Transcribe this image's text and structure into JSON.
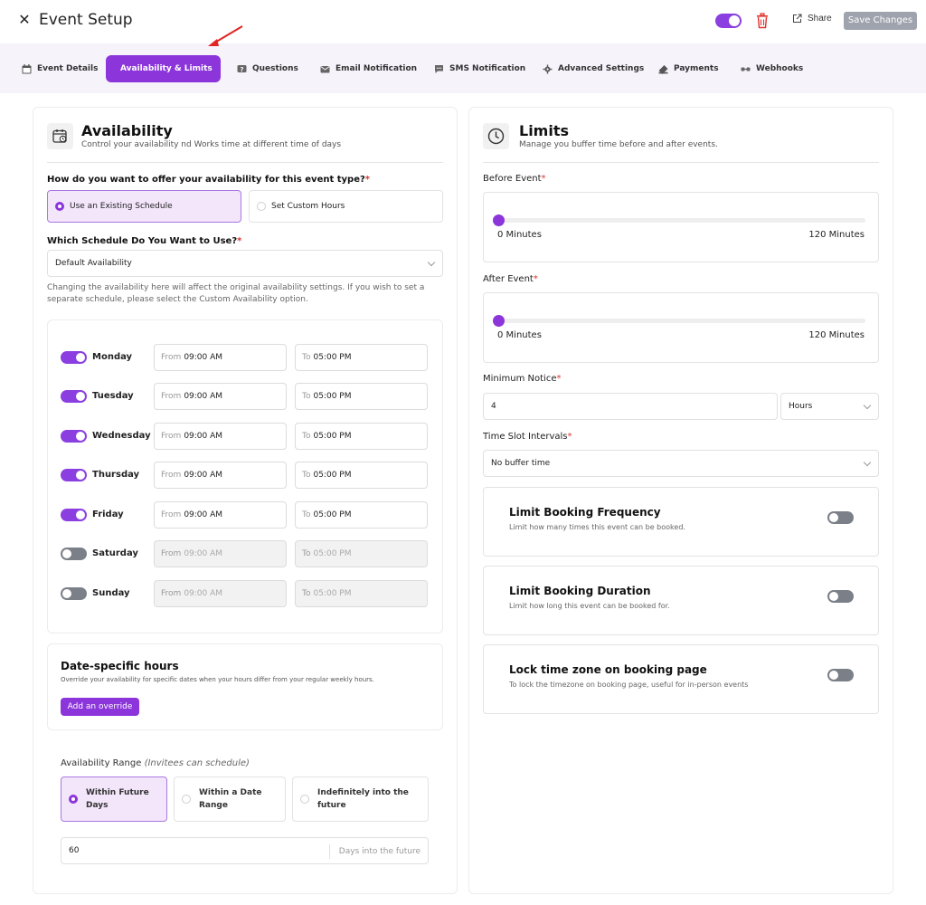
{
  "header": {
    "close_glyph": "✕",
    "title": "Event Setup",
    "share_label": "Share",
    "save_label": "Save Changes",
    "enabled": true
  },
  "tabs": [
    {
      "label": "Event Details",
      "icon": "calendar-icon",
      "active": false
    },
    {
      "label": "Availability & Limits",
      "icon": "clock-icon",
      "active": true
    },
    {
      "label": "Questions",
      "icon": "question-icon",
      "active": false
    },
    {
      "label": "Email Notification",
      "icon": "email-icon",
      "active": false
    },
    {
      "label": "SMS Notification",
      "icon": "sms-icon",
      "active": false
    },
    {
      "label": "Advanced Settings",
      "icon": "gear-icon",
      "active": false
    },
    {
      "label": "Payments",
      "icon": "payment-icon",
      "active": false
    },
    {
      "label": "Webhooks",
      "icon": "webhook-icon",
      "active": false
    }
  ],
  "availability": {
    "title": "Availability",
    "subtitle": "Control your availability nd Works time at different time of days",
    "offer_question": "How do you want to offer your availability for this event type?",
    "offer_options": [
      {
        "label": "Use an Existing Schedule",
        "selected": true
      },
      {
        "label": "Set Custom Hours",
        "selected": false
      }
    ],
    "schedule_question": "Which Schedule Do You Want to Use?",
    "schedule_value": "Default Availability",
    "schedule_note": "Changing the availability here will affect the original availability settings. If you wish to set a separate schedule, please select the Custom Availability option.",
    "from_prefix": "From",
    "to_prefix": "To",
    "days": [
      {
        "name": "Monday",
        "enabled": true,
        "from": "09:00 AM",
        "to": "05:00 PM"
      },
      {
        "name": "Tuesday",
        "enabled": true,
        "from": "09:00 AM",
        "to": "05:00 PM"
      },
      {
        "name": "Wednesday",
        "enabled": true,
        "from": "09:00 AM",
        "to": "05:00 PM"
      },
      {
        "name": "Thursday",
        "enabled": true,
        "from": "09:00 AM",
        "to": "05:00 PM"
      },
      {
        "name": "Friday",
        "enabled": true,
        "from": "09:00 AM",
        "to": "05:00 PM"
      },
      {
        "name": "Saturday",
        "enabled": false,
        "from": "09:00 AM",
        "to": "05:00 PM"
      },
      {
        "name": "Sunday",
        "enabled": false,
        "from": "09:00 AM",
        "to": "05:00 PM"
      }
    ],
    "date_specific": {
      "title": "Date-specific hours",
      "subtitle": "Override your availability for specific dates when your hours differ from your regular weekly hours.",
      "button": "Add an override"
    },
    "range": {
      "label": "Availability Range",
      "label_hint": "(Invitees can schedule)",
      "options": [
        {
          "line1": "Within Future",
          "line2": "Days",
          "selected": true
        },
        {
          "line1": "Within a Date",
          "line2": "Range",
          "selected": false
        },
        {
          "line1": "Indefinitely into the",
          "line2": "future",
          "selected": false
        }
      ],
      "days_value": "60",
      "days_suffix": "Days into the future"
    }
  },
  "limits": {
    "title": "Limits",
    "subtitle": "Manage you buffer time before and after events.",
    "before_label": "Before Event",
    "before_min": "0 Minutes",
    "before_max": "120 Minutes",
    "before_value_minutes": 0,
    "after_label": "After Event",
    "after_min": "0 Minutes",
    "after_max": "120 Minutes",
    "after_value_minutes": 0,
    "min_notice_label": "Minimum Notice",
    "min_notice_value": "4",
    "min_notice_unit": "Hours",
    "interval_label": "Time Slot Intervals",
    "interval_value": "No buffer time",
    "features": [
      {
        "title": "Limit Booking Frequency",
        "subtitle": "Limit how many times this event can be booked.",
        "enabled": false
      },
      {
        "title": "Limit Booking Duration",
        "subtitle": "Limit how long this event can be booked for.",
        "enabled": false
      },
      {
        "title": "Lock time zone on booking page",
        "subtitle": "To lock the timezone on booking page, useful for in-person events",
        "enabled": false
      }
    ]
  },
  "colors": {
    "accent": "#8b35db",
    "tab_bg": "#f6f3fb",
    "selected_bg": "#f3e6fb",
    "required": "#e0312b",
    "toggle_off": "#7a7f88"
  }
}
